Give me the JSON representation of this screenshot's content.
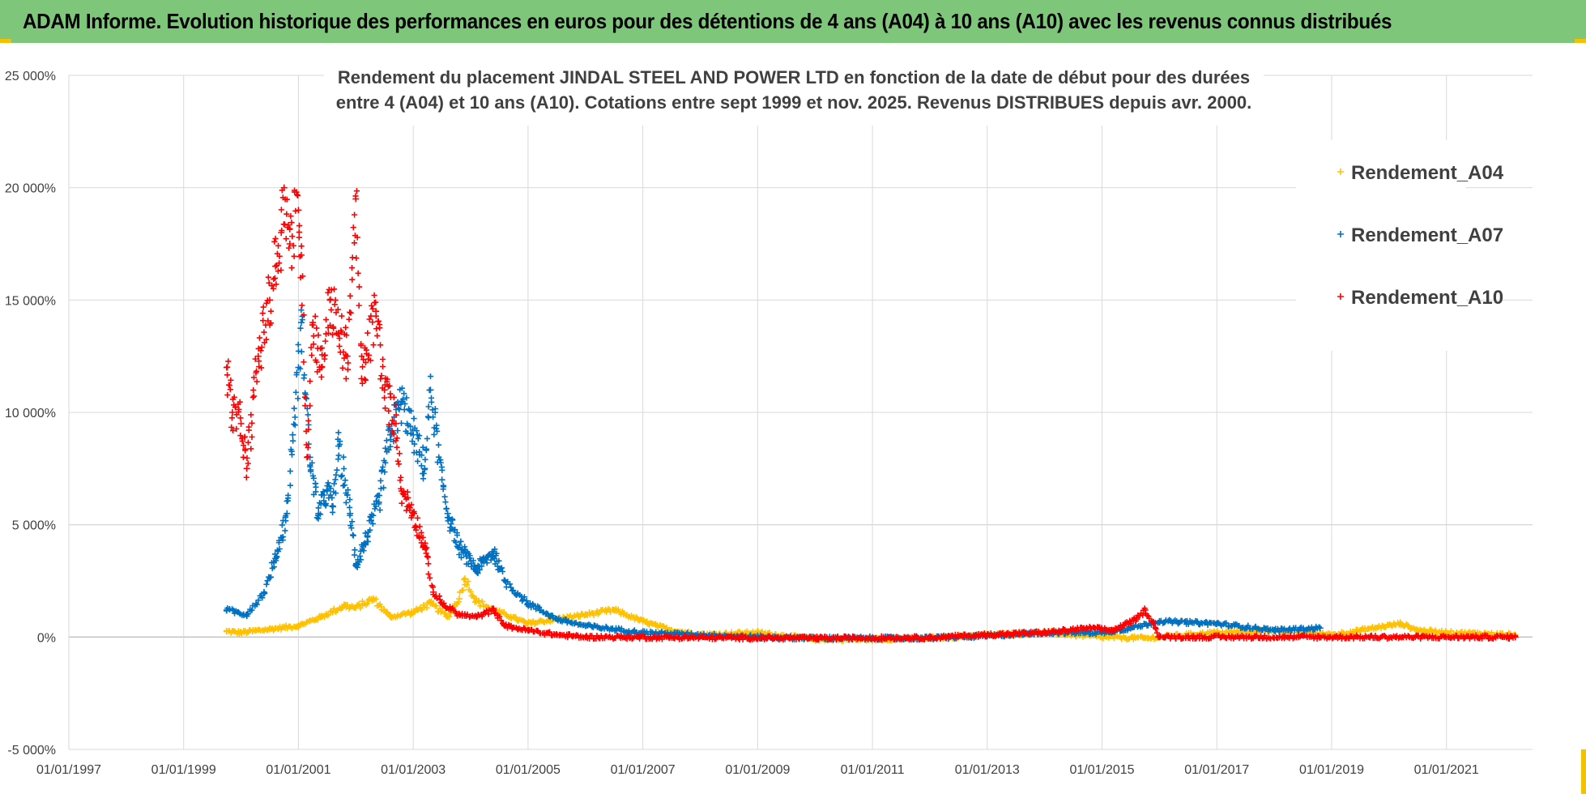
{
  "banner": {
    "title": "ADAM Informe. Evolution historique des performances en euros pour des détentions de 4 ans (A04) à 10 ans (A10) avec les revenus connus distribués"
  },
  "colors": {
    "A04": "#ffc000",
    "A07": "#0070c0",
    "A10": "#ff0000",
    "banner": "#7dc67a",
    "grid": "#d9d9d9"
  },
  "chart_data": {
    "type": "scatter",
    "title_lines": [
      "Rendement du placement JINDAL STEEL AND POWER LTD en fonction de la date de début pour des durées",
      "entre 4 (A04) et 10 ans (A10).  Cotations entre sept 1999 et nov. 2025. Revenus DISTRIBUES depuis avr. 2000."
    ],
    "xlabel": "",
    "ylabel": "",
    "xlim": [
      1997.0,
      2022.5
    ],
    "ylim": [
      -5000,
      25000
    ],
    "x_ticks": [
      "01/01/1997",
      "01/01/1999",
      "01/01/2001",
      "01/01/2003",
      "01/01/2005",
      "01/01/2007",
      "01/01/2009",
      "01/01/2011",
      "01/01/2013",
      "01/01/2015",
      "01/01/2017",
      "01/01/2019",
      "01/01/2021"
    ],
    "y_ticks": [
      "25 000%",
      "20 000%",
      "15 000%",
      "10 000%",
      "5 000%",
      "0%",
      "-5 000%"
    ],
    "legend_position": "top-right",
    "series": [
      {
        "name": "Rendement_A04",
        "color": "#ffc000",
        "points": [
          [
            1999.75,
            250
          ],
          [
            2000.0,
            200
          ],
          [
            2000.5,
            350
          ],
          [
            2001.0,
            500
          ],
          [
            2001.4,
            900
          ],
          [
            2001.8,
            1400
          ],
          [
            2002.0,
            1300
          ],
          [
            2002.3,
            1700
          ],
          [
            2002.6,
            900
          ],
          [
            2003.0,
            1100
          ],
          [
            2003.3,
            1500
          ],
          [
            2003.6,
            900
          ],
          [
            2003.8,
            1700
          ],
          [
            2003.9,
            2600
          ],
          [
            2004.1,
            1600
          ],
          [
            2004.4,
            1200
          ],
          [
            2004.7,
            900
          ],
          [
            2005.0,
            600
          ],
          [
            2005.5,
            800
          ],
          [
            2006.0,
            1000
          ],
          [
            2006.5,
            1200
          ],
          [
            2007.0,
            700
          ],
          [
            2007.5,
            300
          ],
          [
            2008.0,
            100
          ],
          [
            2009.0,
            200
          ],
          [
            2010.0,
            -100
          ],
          [
            2011.0,
            -100
          ],
          [
            2012.0,
            -50
          ],
          [
            2013.0,
            100
          ],
          [
            2014.0,
            200
          ],
          [
            2015.0,
            0
          ],
          [
            2015.8,
            -50
          ],
          [
            2016.2,
            50
          ],
          [
            2017.0,
            200
          ],
          [
            2018.0,
            300
          ],
          [
            2019.0,
            100
          ],
          [
            2019.5,
            300
          ],
          [
            2020.2,
            600
          ],
          [
            2020.5,
            300
          ],
          [
            2021.0,
            200
          ],
          [
            2022.2,
            100
          ]
        ]
      },
      {
        "name": "Rendement_A07",
        "color": "#0070c0",
        "points": [
          [
            1999.75,
            1200
          ],
          [
            2000.1,
            1000
          ],
          [
            2000.4,
            2000
          ],
          [
            2000.6,
            3500
          ],
          [
            2000.8,
            5500
          ],
          [
            2000.9,
            9000
          ],
          [
            2001.0,
            12000
          ],
          [
            2001.05,
            14000
          ],
          [
            2001.2,
            8000
          ],
          [
            2001.35,
            5500
          ],
          [
            2001.5,
            6500
          ],
          [
            2001.6,
            5800
          ],
          [
            2001.7,
            8500
          ],
          [
            2001.9,
            5500
          ],
          [
            2002.0,
            3200
          ],
          [
            2002.2,
            4500
          ],
          [
            2002.4,
            6000
          ],
          [
            2002.6,
            9000
          ],
          [
            2002.8,
            10500
          ],
          [
            2003.0,
            9000
          ],
          [
            2003.2,
            7500
          ],
          [
            2003.3,
            11000
          ],
          [
            2003.5,
            7000
          ],
          [
            2003.6,
            5500
          ],
          [
            2003.8,
            4000
          ],
          [
            2004.1,
            3000
          ],
          [
            2004.4,
            3800
          ],
          [
            2004.6,
            2500
          ],
          [
            2005.0,
            1500
          ],
          [
            2005.5,
            800
          ],
          [
            2006.0,
            500
          ],
          [
            2007.0,
            200
          ],
          [
            2008.0,
            100
          ],
          [
            2009.0,
            0
          ],
          [
            2010.0,
            -50
          ],
          [
            2011.0,
            -50
          ],
          [
            2012.0,
            -50
          ],
          [
            2013.0,
            50
          ],
          [
            2014.0,
            200
          ],
          [
            2015.0,
            200
          ],
          [
            2015.5,
            400
          ],
          [
            2016.0,
            700
          ],
          [
            2017.0,
            600
          ],
          [
            2018.0,
            300
          ],
          [
            2018.8,
            400
          ]
        ]
      },
      {
        "name": "Rendement_A10",
        "color": "#ff0000",
        "points": [
          [
            1999.75,
            12000
          ],
          [
            1999.85,
            10000
          ],
          [
            2000.0,
            9500
          ],
          [
            2000.1,
            7500
          ],
          [
            2000.3,
            12500
          ],
          [
            2000.5,
            15000
          ],
          [
            2000.6,
            16500
          ],
          [
            2000.7,
            18000
          ],
          [
            2000.75,
            20000
          ],
          [
            2000.85,
            17500
          ],
          [
            2001.0,
            19000
          ],
          [
            2001.05,
            17000
          ],
          [
            2001.15,
            8000
          ],
          [
            2001.25,
            14000
          ],
          [
            2001.4,
            12000
          ],
          [
            2001.55,
            15000
          ],
          [
            2001.7,
            13500
          ],
          [
            2001.85,
            12500
          ],
          [
            2002.0,
            19500
          ],
          [
            2002.1,
            11500
          ],
          [
            2002.35,
            14500
          ],
          [
            2002.5,
            11000
          ],
          [
            2002.7,
            9500
          ],
          [
            2002.8,
            6500
          ],
          [
            2003.0,
            5500
          ],
          [
            2003.2,
            4000
          ],
          [
            2003.35,
            2000
          ],
          [
            2003.5,
            1500
          ],
          [
            2003.8,
            1000
          ],
          [
            2004.1,
            900
          ],
          [
            2004.4,
            1200
          ],
          [
            2004.6,
            500
          ],
          [
            2005.0,
            300
          ],
          [
            2005.5,
            100
          ],
          [
            2006.0,
            0
          ],
          [
            2010.0,
            -50
          ],
          [
            2012.0,
            -30
          ],
          [
            2013.0,
            100
          ],
          [
            2014.0,
            200
          ],
          [
            2014.8,
            400
          ],
          [
            2015.2,
            300
          ],
          [
            2015.6,
            800
          ],
          [
            2015.75,
            1200
          ],
          [
            2015.9,
            600
          ],
          [
            2016.0,
            0
          ],
          [
            2022.2,
            0
          ]
        ]
      }
    ]
  }
}
